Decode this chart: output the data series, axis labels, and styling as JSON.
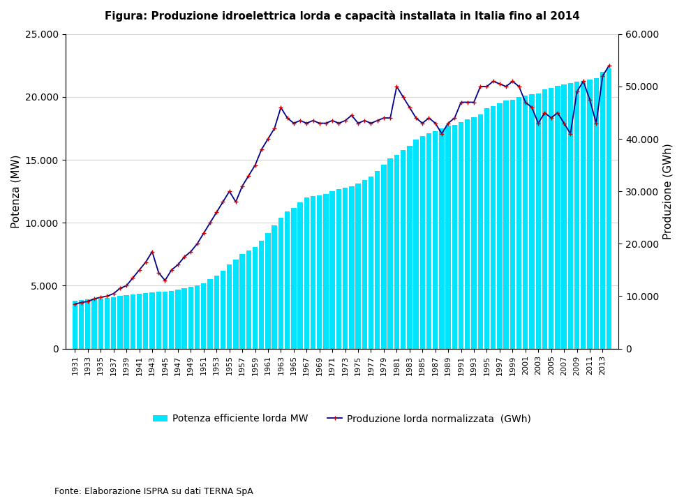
{
  "title": "Figura: Produzione idroelettrica lorda e capacità installata in Italia fino al 2014",
  "ylabel_left": "Potenza (MW)",
  "ylabel_right": "Produzione (GWh)",
  "source": "Fonte: Elaborazione ISPRA su dati TERNA SpA",
  "legend_bar": "Potenza efficiente lorda MW",
  "legend_line": "Produzione lorda normalizzata  (GWh)",
  "bar_color": "#00E5FF",
  "line_color": "#00008B",
  "marker_color": "#CC0000",
  "ylim_left": [
    0,
    25000
  ],
  "ylim_right": [
    0,
    60000
  ],
  "yticks_left": [
    0,
    5000,
    10000,
    15000,
    20000,
    25000
  ],
  "yticks_right": [
    0,
    10000,
    20000,
    30000,
    40000,
    50000,
    60000
  ],
  "years": [
    1931,
    1932,
    1933,
    1934,
    1935,
    1936,
    1937,
    1938,
    1939,
    1940,
    1941,
    1942,
    1943,
    1944,
    1945,
    1946,
    1947,
    1948,
    1949,
    1950,
    1951,
    1952,
    1953,
    1954,
    1955,
    1956,
    1957,
    1958,
    1959,
    1960,
    1961,
    1962,
    1963,
    1964,
    1965,
    1966,
    1967,
    1968,
    1969,
    1970,
    1971,
    1972,
    1973,
    1974,
    1975,
    1976,
    1977,
    1978,
    1979,
    1980,
    1981,
    1982,
    1983,
    1984,
    1985,
    1986,
    1987,
    1988,
    1989,
    1990,
    1991,
    1992,
    1993,
    1994,
    1995,
    1996,
    1997,
    1998,
    1999,
    2000,
    2001,
    2002,
    2003,
    2004,
    2005,
    2006,
    2007,
    2008,
    2009,
    2010,
    2011,
    2012,
    2013,
    2014
  ],
  "potenza_MW": [
    3800,
    3850,
    3900,
    3950,
    4000,
    4050,
    4100,
    4200,
    4250,
    4300,
    4350,
    4400,
    4450,
    4500,
    4550,
    4600,
    4700,
    4800,
    4900,
    5000,
    5200,
    5500,
    5800,
    6200,
    6700,
    7100,
    7500,
    7800,
    8100,
    8600,
    9200,
    9800,
    10400,
    10900,
    11200,
    11600,
    12000,
    12100,
    12200,
    12300,
    12500,
    12700,
    12800,
    12900,
    13100,
    13400,
    13700,
    14100,
    14600,
    15100,
    15400,
    15800,
    16100,
    16600,
    16900,
    17100,
    17300,
    17500,
    17700,
    17800,
    18000,
    18200,
    18400,
    18600,
    19100,
    19300,
    19500,
    19700,
    19800,
    20000,
    20100,
    20200,
    20300,
    20600,
    20700,
    20900,
    21000,
    21100,
    21200,
    21300,
    21400,
    21500,
    22000,
    22300
  ],
  "produzione_GWh": [
    8500,
    8800,
    9000,
    9500,
    9800,
    10000,
    10500,
    11500,
    12000,
    13500,
    15000,
    16500,
    18500,
    14500,
    13000,
    15000,
    16000,
    17500,
    18500,
    20000,
    22000,
    24000,
    26000,
    28000,
    30000,
    28000,
    31000,
    33000,
    35000,
    38000,
    40000,
    42000,
    46000,
    44000,
    43000,
    43500,
    43000,
    43500,
    43000,
    43000,
    43500,
    43000,
    43500,
    44500,
    43000,
    43500,
    43000,
    43500,
    44000,
    44000,
    50000,
    48000,
    46000,
    44000,
    43000,
    44000,
    43000,
    41000,
    43000,
    44000,
    47000,
    47000,
    47000,
    50000,
    50000,
    51000,
    50500,
    50000,
    51000,
    50000,
    47000,
    46000,
    43000,
    45000,
    44000,
    45000,
    43000,
    41000,
    49000,
    51000,
    47500,
    43000,
    52000,
    54000
  ]
}
